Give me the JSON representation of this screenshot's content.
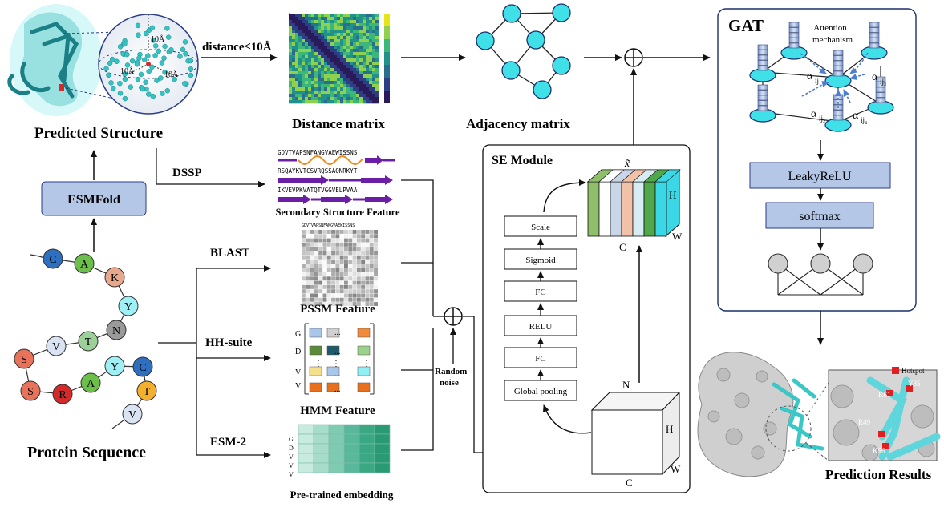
{
  "labels": {
    "predicted_structure": "Predicted Structure",
    "esmfold": "ESMFold",
    "protein_sequence": "Protein Sequence",
    "distance_cond": "distance≤10Å",
    "distance_matrix": "Distance matrix",
    "adjacency_matrix": "Adjacency matrix",
    "dssp": "DSSP",
    "blast": "BLAST",
    "hhsuite": "HH-suite",
    "esm2": "ESM-2",
    "secondary_structure": "Secondary Structure Feature",
    "pssm": "PSSM Feature",
    "hmm": "HMM Feature",
    "pretrained": "Pre-trained embedding",
    "random": "Random",
    "noise": "noise",
    "se_module": "SE Module",
    "gat": "GAT",
    "attention1": "Attention",
    "attention2": "mechanism",
    "leakyrelu": "LeakyReLU",
    "softmax": "softmax",
    "prediction_results": "Prediction Results",
    "hotspot": "Hotspot",
    "sphere_10a_top": "10Å",
    "sphere_10a_left": "10Å",
    "sphere_10a_right": "10Å",
    "x_tilde": "x̃",
    "dim_h": "H",
    "dim_w": "W",
    "dim_c": "C",
    "dim_n": "N"
  },
  "se_steps": [
    "Scale",
    "Sigmoid",
    "FC",
    "RELU",
    "FC",
    "Global pooling"
  ],
  "alpha": {
    "a1": "α",
    "s1": "ij₁",
    "a2": "α",
    "s2": "ij₂",
    "a3": "α",
    "s3": "ij₃",
    "a4": "α",
    "s4": "ij₄"
  },
  "residues": [
    {
      "label": "C",
      "color": "#2f6fbf"
    },
    {
      "label": "A",
      "color": "#6cbf4a"
    },
    {
      "label": "K",
      "color": "#e8a88c"
    },
    {
      "label": "Y",
      "color": "#9ff0f5"
    },
    {
      "label": "N",
      "color": "#9a9a9a"
    },
    {
      "label": "T",
      "color": "#9ccf9a"
    },
    {
      "label": "V",
      "color": "#d9e3f2"
    },
    {
      "label": "S",
      "color": "#e8735a"
    },
    {
      "label": "S",
      "color": "#e8735a"
    },
    {
      "label": "R",
      "color": "#d42a2a"
    },
    {
      "label": "A",
      "color": "#6cbf4a"
    },
    {
      "label": "Y",
      "color": "#9ff0f5"
    },
    {
      "label": "C",
      "color": "#2f6fbf"
    },
    {
      "label": "T",
      "color": "#f2b02e"
    },
    {
      "label": "V",
      "color": "#d9e3f2"
    }
  ],
  "sequences": {
    "row1": "GDVTVAPSNFANGVAEWISSNS",
    "row2": "RSQAYKVTCSVRQSSAQNRKYT",
    "row3": "IKVEVPKVATQTVGGVELPVAA",
    "pssm_header": "GDVTVAPSNFANGVAEWISSNS"
  },
  "hmm_axis": [
    "G",
    "D",
    "V",
    "V"
  ],
  "embed_axis": [
    "G",
    "D",
    "V",
    "V",
    "V"
  ],
  "ellipsis": "...",
  "vdots": "⋮",
  "hotspot_residues": [
    "K61",
    "Y85",
    "R49",
    "K56"
  ]
}
